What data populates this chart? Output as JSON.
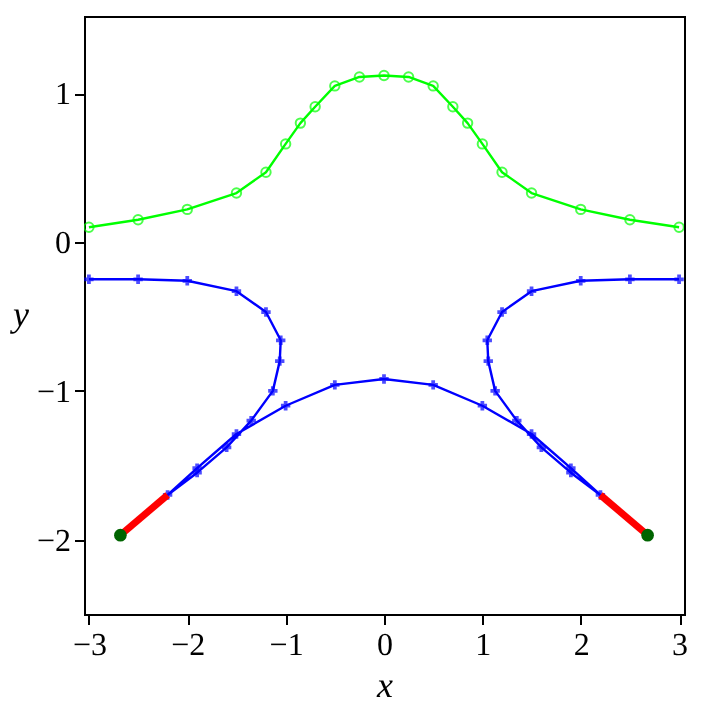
{
  "chart_data": {
    "type": "line",
    "xlabel": "x",
    "ylabel": "y",
    "xlim": [
      -3.05,
      3.05
    ],
    "ylim": [
      -2.5,
      1.52
    ],
    "xticks": [
      -3,
      -2,
      -1,
      0,
      1,
      2,
      3
    ],
    "yticks": [
      -2,
      -1,
      0,
      1
    ],
    "grid": false,
    "series": [
      {
        "type": "line",
        "marker": "circle",
        "color": "#00ff00",
        "x": [
          -3,
          -2.5,
          -2,
          -1.5,
          -1.2,
          -1,
          -0.85,
          -0.7,
          -0.5,
          -0.25,
          0,
          0.25,
          0.5,
          0.7,
          0.85,
          1,
          1.2,
          1.5,
          2,
          2.5,
          3
        ],
        "values": [
          0.1,
          0.15,
          0.22,
          0.33,
          0.47,
          0.66,
          0.8,
          0.91,
          1.05,
          1.11,
          1.12,
          1.11,
          1.05,
          0.91,
          0.8,
          0.66,
          0.47,
          0.33,
          0.22,
          0.15,
          0.1
        ]
      },
      {
        "type": "line",
        "marker": "cross",
        "color": "#0000ff",
        "x": [
          -3,
          -2.5,
          -2,
          -1.5,
          -1.2,
          -1.05,
          -1.06,
          -1.13,
          -1.35,
          -1.6,
          -1.9,
          -2.2,
          -1.9,
          -1.5,
          -1,
          -0.5,
          0,
          0.5,
          1,
          1.5,
          1.9,
          2.2,
          1.9,
          1.6,
          1.35,
          1.13,
          1.06,
          1.05,
          1.2,
          1.5,
          2,
          2.5,
          3
        ],
        "values": [
          -0.25,
          -0.25,
          -0.26,
          -0.33,
          -0.47,
          -0.66,
          -0.8,
          -1.0,
          -1.2,
          -1.38,
          -1.55,
          -1.7,
          -1.52,
          -1.29,
          -1.1,
          -0.96,
          -0.92,
          -0.96,
          -1.1,
          -1.29,
          -1.52,
          -1.7,
          -1.55,
          -1.38,
          -1.2,
          -1.0,
          -0.8,
          -0.66,
          -0.47,
          -0.33,
          -0.26,
          -0.25,
          -0.25
        ]
      },
      {
        "type": "line",
        "marker": "none",
        "color": "#ff0000",
        "x": [
          -2.2,
          -2.68
        ],
        "values": [
          -1.7,
          -1.97
        ]
      },
      {
        "type": "line",
        "marker": "none",
        "color": "#ff0000",
        "x": [
          2.2,
          2.68
        ],
        "values": [
          -1.7,
          -1.97
        ]
      },
      {
        "type": "scatter",
        "marker": "circle",
        "color": "#006400",
        "x": [
          -2.68,
          2.68
        ],
        "values": [
          -1.97,
          -1.97
        ]
      }
    ]
  }
}
